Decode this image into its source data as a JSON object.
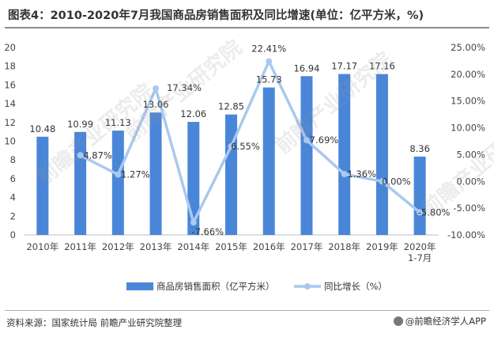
{
  "title": "图表4：2010-2020年7月我国商品房销售面积及同比增速(单位：亿平方米，%)",
  "source": "资料来源：国家统计局 前瞻产业研究院整理",
  "brand": "@前瞻经济学人APP",
  "watermark": "前瞻产业研究院",
  "colors": {
    "bar": "#4a86d8",
    "line": "#a9c9ee",
    "axis_text": "#444444"
  },
  "chart_data": {
    "type": "bar",
    "categories": [
      "2010年",
      "2011年",
      "2012年",
      "2013年",
      "2014年",
      "2015年",
      "2016年",
      "2017年",
      "2018年",
      "2019年",
      "2020年\n1-7月"
    ],
    "series": [
      {
        "name": "商品房销售面积（亿平方米）",
        "type": "bar",
        "axis": "left",
        "values": [
          10.48,
          10.99,
          11.13,
          13.06,
          12.06,
          12.85,
          15.73,
          16.94,
          17.17,
          17.16,
          8.36
        ],
        "labels": [
          "10.48",
          "10.99",
          "11.13",
          "13.06",
          "12.06",
          "12.85",
          "15.73",
          "16.94",
          "17.17",
          "17.16",
          "8.36"
        ]
      },
      {
        "name": "同比增长（%）",
        "type": "line",
        "axis": "right",
        "values": [
          null,
          4.87,
          1.27,
          17.34,
          -7.66,
          6.55,
          22.41,
          7.69,
          1.36,
          0.0,
          -5.8
        ],
        "labels": [
          null,
          "4.87%",
          "1.27%",
          "17.34%",
          "-7.66%",
          "6.55%",
          "22.41%",
          "7.69%",
          "1.36%",
          "0.00%",
          "-5.80%"
        ]
      }
    ],
    "y_left": {
      "min": 0,
      "max": 20,
      "step": 2,
      "ticks": [
        "0",
        "2",
        "4",
        "6",
        "8",
        "10",
        "12",
        "14",
        "16",
        "18",
        "20"
      ]
    },
    "y_right": {
      "min": -10,
      "max": 25,
      "step": 5,
      "ticks": [
        "-10.00%",
        "-5.00%",
        "0.00%",
        "5.00%",
        "10.00%",
        "15.00%",
        "20.00%",
        "25.00%"
      ]
    },
    "grid": false,
    "legend": "bottom"
  }
}
